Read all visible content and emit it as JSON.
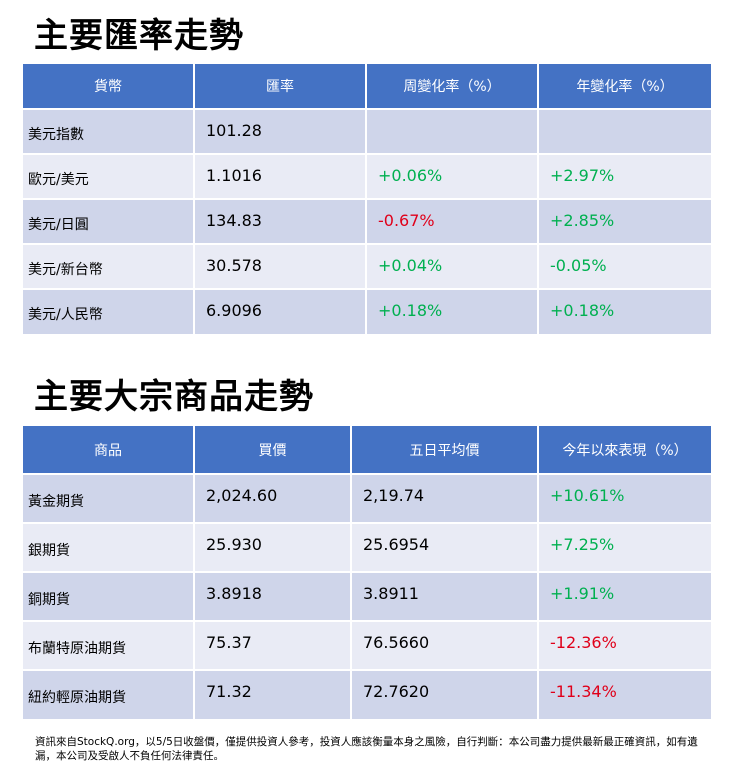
{
  "fx": {
    "title": "主要匯率走勢",
    "headers": [
      "貨幣",
      "匯率",
      "周變化率（%）",
      "年變化率（%）"
    ],
    "rows": [
      {
        "name": "美元指數",
        "rate": "101.28",
        "week": "",
        "year": ""
      },
      {
        "name": "歐元/美元",
        "rate": "1.1016",
        "week": "+0.06%",
        "year": "+2.97%"
      },
      {
        "name": "美元/日圓",
        "rate": "134.83",
        "week": "-0.67%",
        "year": "+2.85%"
      },
      {
        "name": "美元/新台幣",
        "rate": "30.578",
        "week": "+0.04%",
        "year": "-0.05%"
      },
      {
        "name": "美元/人民幣",
        "rate": "6.9096",
        "week": "+0.18%",
        "year": "+0.18%"
      }
    ]
  },
  "commodities": {
    "title": "主要大宗商品走勢",
    "headers": [
      "商品",
      "買價",
      "五日平均價",
      "今年以來表現（%）"
    ],
    "rows": [
      {
        "name": "黃金期貨",
        "bid": "2,024.60",
        "avg5": "2,19.74",
        "ytd": "+10.61%"
      },
      {
        "name": "銀期貨",
        "bid": "25.930",
        "avg5": "25.6954",
        "ytd": "+7.25%"
      },
      {
        "name": "銅期貨",
        "bid": "3.8918",
        "avg5": "3.8911",
        "ytd": "+1.91%"
      },
      {
        "name": "布蘭特原油期貨",
        "bid": "75.37",
        "avg5": "76.5660",
        "ytd": "-12.36%"
      },
      {
        "name": "紐約輕原油期貨",
        "bid": "71.32",
        "avg5": "72.7620",
        "ytd": "-11.34%"
      }
    ]
  },
  "colors": {
    "header_bg": "#4472c4",
    "row_dark": "#cfd5ea",
    "row_light": "#e9ebf5",
    "positive": "#00b050",
    "negative": "#e0001a"
  },
  "footnote": "資訊來自StockQ.org，以5/5日收盤價，僅提供投資人參考，投資人應該衡量本身之風險，自行判斷：本公司盡力提供最新最正確資訊，如有遺漏，本公司及受啟人不負任何法律責任。"
}
